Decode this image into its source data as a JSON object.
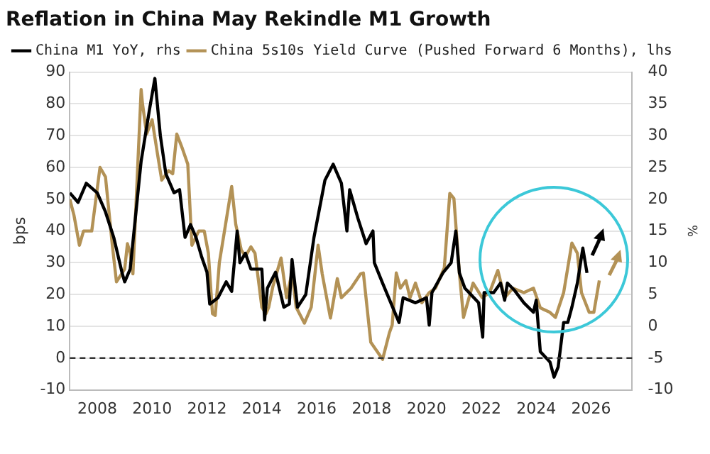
{
  "chart_data": {
    "type": "line",
    "title": "Reflation in China May Rekindle M1 Growth",
    "ylabel": "bps",
    "y2label": "%",
    "xlim": [
      2007.0,
      2027.5
    ],
    "xticks": [
      2008,
      2010,
      2012,
      2014,
      2016,
      2018,
      2020,
      2022,
      2024,
      2026
    ],
    "ylim": [
      -10,
      90
    ],
    "yticks": [
      -10,
      0,
      10,
      20,
      30,
      40,
      50,
      60,
      70,
      80,
      90
    ],
    "y2lim": [
      -10,
      40
    ],
    "y2ticks": [
      -10,
      -5,
      0,
      5,
      10,
      15,
      20,
      25,
      30,
      35,
      40
    ],
    "grid": "y",
    "legend": "top left",
    "line_style": "solid",
    "marker": "none",
    "ref_lines": [
      {
        "axis": "y",
        "value": 0,
        "color": "#333333",
        "line_style": "dashed"
      }
    ],
    "series": [
      {
        "name": "China M1 YoY, rhs",
        "color": "#000000",
        "axis": "y2",
        "x": [
          2007.0,
          2007.3,
          2007.6,
          2008.0,
          2008.3,
          2008.6,
          2008.9,
          2009.0,
          2009.2,
          2009.4,
          2009.6,
          2009.9,
          2010.1,
          2010.3,
          2010.5,
          2010.8,
          2011.0,
          2011.2,
          2011.4,
          2011.6,
          2011.8,
          2012.0,
          2012.1,
          2012.4,
          2012.7,
          2012.9,
          2013.1,
          2013.2,
          2013.4,
          2013.6,
          2014.0,
          2014.1,
          2014.2,
          2014.5,
          2014.8,
          2015.0,
          2015.1,
          2015.3,
          2015.6,
          2015.9,
          2016.1,
          2016.3,
          2016.6,
          2016.9,
          2017.1,
          2017.2,
          2017.5,
          2017.8,
          2018.05,
          2018.1,
          2018.4,
          2019.0,
          2019.15,
          2019.6,
          2020.0,
          2020.1,
          2020.2,
          2020.6,
          2020.9,
          2021.07,
          2021.2,
          2021.4,
          2021.9,
          2022.05,
          2022.1,
          2022.45,
          2022.7,
          2022.85,
          2022.95,
          2023.2,
          2023.55,
          2023.9,
          2024.0,
          2024.15,
          2024.5,
          2024.65,
          2024.8,
          2025.0,
          2025.15,
          2025.3,
          2025.5,
          2025.7,
          2025.85
        ],
        "values": [
          21,
          19.5,
          22.5,
          21,
          18,
          14,
          8.5,
          7,
          9,
          17.5,
          26,
          34,
          39,
          30,
          24,
          21,
          21.5,
          14,
          16,
          14,
          11,
          8.5,
          3.5,
          4.5,
          7,
          5.5,
          15,
          10,
          11.5,
          9,
          9,
          1,
          6,
          8.5,
          3,
          3.5,
          10.5,
          3,
          5,
          14,
          18.5,
          23,
          25.5,
          22.5,
          15,
          21.5,
          17,
          13,
          15,
          10,
          6.8,
          0.6,
          4.5,
          3.7,
          4.5,
          0.2,
          5.3,
          8.4,
          10,
          15,
          8.4,
          6,
          3.7,
          -1.7,
          5.3,
          5.3,
          6.8,
          4.1,
          6.8,
          5.7,
          3.7,
          2.2,
          4.1,
          -4,
          -5.6,
          -8,
          -6.4,
          0.6,
          0.6,
          3,
          6.8,
          12.3,
          8.4
        ]
      },
      {
        "name": "China 5s10s Yield Curve (Pushed Forward 6 Months), lhs",
        "color": "#b39256",
        "x": [
          2007.0,
          2007.15,
          2007.35,
          2007.5,
          2007.8,
          2008.1,
          2008.3,
          2008.55,
          2008.7,
          2009.0,
          2009.1,
          2009.2,
          2009.3,
          2009.6,
          2009.65,
          2009.8,
          2010.0,
          2010.2,
          2010.35,
          2010.6,
          2010.75,
          2010.9,
          2011.1,
          2011.3,
          2011.45,
          2011.7,
          2011.9,
          2012.05,
          2012.2,
          2012.3,
          2012.45,
          2012.6,
          2012.9,
          2013.05,
          2013.25,
          2013.4,
          2013.6,
          2013.75,
          2014.0,
          2014.15,
          2014.25,
          2014.4,
          2014.7,
          2014.9,
          2015.1,
          2015.25,
          2015.55,
          2015.8,
          2016.05,
          2016.2,
          2016.5,
          2016.75,
          2016.9,
          2017.25,
          2017.6,
          2017.7,
          2017.97,
          2018.4,
          2018.65,
          2018.75,
          2018.9,
          2019.05,
          2019.25,
          2019.4,
          2019.6,
          2019.83,
          2020.1,
          2020.33,
          2020.65,
          2020.85,
          2021.0,
          2021.2,
          2021.35,
          2021.7,
          2022.03,
          2022.3,
          2022.6,
          2022.85,
          2023.15,
          2023.55,
          2023.9,
          2024.15,
          2024.5,
          2024.7,
          2025.0,
          2025.3,
          2025.5,
          2025.65,
          2025.93,
          2026.1,
          2026.3
        ],
        "values": [
          50,
          45,
          35.5,
          40,
          40,
          60,
          57,
          35.5,
          24,
          28,
          36,
          33,
          26.5,
          84.5,
          80,
          70.5,
          75,
          64,
          56,
          59,
          58,
          70.5,
          66,
          61,
          35.5,
          40,
          40,
          33,
          14,
          13.4,
          30,
          38,
          54,
          42,
          34,
          32,
          35,
          33,
          16,
          14,
          16,
          22.5,
          31.5,
          19,
          27,
          16,
          11,
          16,
          35.5,
          26.5,
          12.6,
          25,
          19,
          22,
          26.5,
          26.8,
          5,
          -0.4,
          8,
          10.4,
          26.8,
          22,
          24.4,
          19,
          23.6,
          17.4,
          20.6,
          22,
          28.4,
          51.8,
          50.2,
          26.8,
          12.8,
          23.6,
          19,
          20.6,
          27.6,
          19,
          22,
          20.6,
          22,
          15.8,
          14.4,
          12.8,
          20.6,
          36.2,
          33,
          20.6,
          14.4,
          14.4,
          24.4
        ]
      }
    ]
  }
}
